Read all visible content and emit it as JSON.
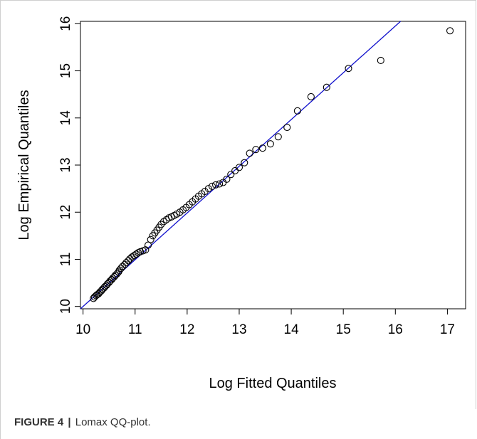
{
  "caption": {
    "label": "FIGURE 4",
    "separator": "|",
    "text": "Lomax QQ-plot."
  },
  "colors": {
    "line": "#1010cc",
    "points": "#000000",
    "axis": "#000000"
  },
  "chart_data": {
    "type": "scatter",
    "title": "",
    "xlabel": "Log Fitted Quantiles",
    "ylabel": "Log Empirical Quantiles",
    "xlim": [
      9.95,
      17.35
    ],
    "ylim": [
      9.95,
      16.05
    ],
    "xticks": [
      10,
      11,
      12,
      13,
      14,
      15,
      16,
      17
    ],
    "yticks": [
      10,
      11,
      12,
      13,
      14,
      15,
      16
    ],
    "grid": false,
    "reference_line": {
      "x": [
        9.95,
        16.1
      ],
      "y": [
        9.95,
        16.05
      ]
    },
    "points": {
      "x": [
        10.2,
        10.22,
        10.25,
        10.27,
        10.3,
        10.32,
        10.35,
        10.37,
        10.4,
        10.42,
        10.45,
        10.47,
        10.5,
        10.52,
        10.55,
        10.57,
        10.6,
        10.62,
        10.65,
        10.68,
        10.7,
        10.73,
        10.76,
        10.8,
        10.83,
        10.87,
        10.9,
        10.94,
        10.98,
        11.02,
        11.06,
        11.1,
        11.15,
        11.2,
        11.25,
        11.3,
        11.34,
        11.38,
        11.42,
        11.46,
        11.5,
        11.55,
        11.6,
        11.65,
        11.7,
        11.75,
        11.8,
        11.86,
        11.92,
        11.98,
        12.04,
        12.1,
        12.16,
        12.22,
        12.28,
        12.34,
        12.41,
        12.48,
        12.55,
        12.62,
        12.69,
        12.76,
        12.84,
        12.92,
        13.0,
        13.1,
        13.2,
        13.32,
        13.45,
        13.6,
        13.75,
        13.92,
        14.12,
        14.38,
        14.68,
        15.1,
        15.72,
        17.05
      ],
      "y": [
        10.17,
        10.2,
        10.23,
        10.25,
        10.27,
        10.3,
        10.33,
        10.36,
        10.39,
        10.42,
        10.45,
        10.48,
        10.51,
        10.54,
        10.57,
        10.6,
        10.63,
        10.66,
        10.69,
        10.73,
        10.77,
        10.81,
        10.85,
        10.89,
        10.93,
        10.97,
        11.01,
        11.05,
        11.08,
        11.11,
        11.14,
        11.16,
        11.18,
        11.2,
        11.3,
        11.42,
        11.5,
        11.56,
        11.62,
        11.68,
        11.74,
        11.8,
        11.84,
        11.88,
        11.9,
        11.93,
        11.96,
        12.0,
        12.05,
        12.1,
        12.16,
        12.22,
        12.28,
        12.34,
        12.39,
        12.44,
        12.5,
        12.55,
        12.58,
        12.6,
        12.63,
        12.7,
        12.8,
        12.88,
        12.95,
        13.05,
        13.25,
        13.33,
        13.36,
        13.45,
        13.6,
        13.8,
        14.15,
        14.45,
        14.65,
        15.05,
        15.22,
        15.85
      ]
    }
  }
}
